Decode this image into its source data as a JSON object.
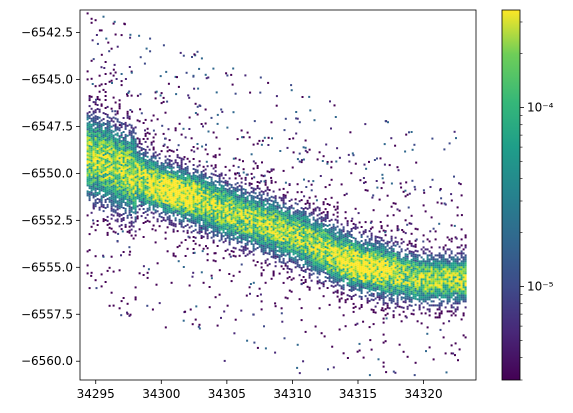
{
  "chart_data": {
    "type": "heatmap",
    "title": "",
    "xlabel": "",
    "ylabel": "",
    "xlim": [
      34293.8,
      34324.0
    ],
    "ylim": [
      -6561.0,
      -6541.3
    ],
    "xticks": [
      34295,
      34300,
      34305,
      34310,
      34315,
      34320
    ],
    "xtick_labels": [
      "34295",
      "34300",
      "34305",
      "34310",
      "34315",
      "34320"
    ],
    "yticks": [
      -6542.5,
      -6545.0,
      -6547.5,
      -6550.0,
      -6552.5,
      -6555.0,
      -6557.5,
      -6560.0
    ],
    "ytick_labels": [
      "−6542.5",
      "−6545.0",
      "−6547.5",
      "−6550.0",
      "−6552.5",
      "−6555.0",
      "−6557.5",
      "−6560.0"
    ],
    "colorbar": {
      "scale": "log",
      "colormap": "viridis",
      "vmin": 3e-06,
      "vmax": 0.00035,
      "ticks": [
        1e-05,
        0.0001
      ],
      "tick_labels": [
        "10⁻⁵",
        "10⁻⁴"
      ]
    },
    "density_band": {
      "description_points": [
        {
          "x": 34295.5,
          "y": -6549.3
        },
        {
          "x": 34300,
          "y": -6550.7
        },
        {
          "x": 34305,
          "y": -6552.0
        },
        {
          "x": 34310,
          "y": -6553.2
        },
        {
          "x": 34315,
          "y": -6554.8
        },
        {
          "x": 34319.5,
          "y": -6555.6
        }
      ],
      "peak_regions": [
        {
          "x": 34301,
          "y": -6551.0
        },
        {
          "x": 34315,
          "y": -6555.0
        }
      ]
    }
  }
}
